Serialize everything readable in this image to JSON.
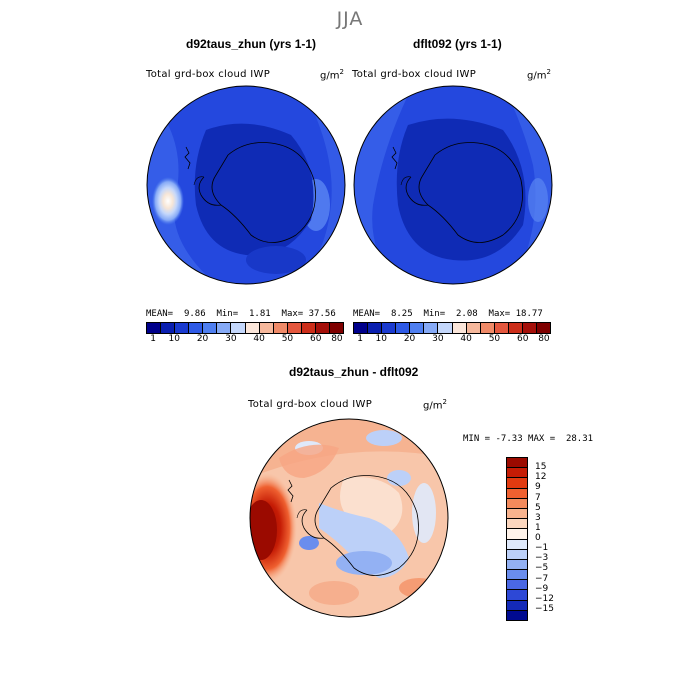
{
  "season": "JJA",
  "panels": [
    {
      "title": "d92taus_zhun (yrs 1-1)",
      "variable": "Total grd-box cloud IWP",
      "units": "g/m",
      "units_sup": "2",
      "stats": {
        "mean_label": "MEAN=",
        "mean": "9.86",
        "min_label": "Min=",
        "min": "1.81",
        "max_label": "Max=",
        "max": "37.56"
      }
    },
    {
      "title": "dflt092 (yrs 1-1)",
      "variable": "Total grd-box cloud IWP",
      "units": "g/m",
      "units_sup": "2",
      "stats": {
        "mean_label": "MEAN=",
        "mean": "8.25",
        "min_label": "Min=",
        "min": "2.08",
        "max_label": "Max=",
        "max": "18.77"
      }
    }
  ],
  "colorbar_top": {
    "colors": [
      "#00008b",
      "#0a1fb0",
      "#1a3ad0",
      "#2e5ae6",
      "#4f7ff0",
      "#86aaf6",
      "#c4d7fb",
      "#fbe6da",
      "#f6b89c",
      "#ef8a68",
      "#e4573e",
      "#cc2e1a",
      "#a5100a",
      "#7f0000"
    ],
    "labels": [
      "1",
      "10",
      "20",
      "30",
      "40",
      "50",
      "60",
      "80"
    ]
  },
  "diff_panel": {
    "title": "d92taus_zhun - dflt092",
    "variable": "Total grd-box cloud IWP",
    "units": "g/m",
    "units_sup": "2",
    "stats": {
      "min_label": "MIN =",
      "min": "-7.33",
      "max_label": "MAX =",
      "max": "28.31"
    }
  },
  "colorbar_diff": {
    "colors": [
      "#9b0a00",
      "#c51c05",
      "#e23a10",
      "#ef6030",
      "#f38a5c",
      "#f8b38e",
      "#fbd6be",
      "#fff3ea",
      "#dfe9fb",
      "#bcd0f8",
      "#93b1f3",
      "#6a8ded",
      "#4a68e4",
      "#2d48d6",
      "#142ab8",
      "#000a90"
    ],
    "labels": [
      "15",
      "12",
      "9",
      "7",
      "5",
      "3",
      "1",
      "0",
      "−1",
      "−3",
      "−5",
      "−7",
      "−9",
      "−12",
      "−15"
    ]
  }
}
